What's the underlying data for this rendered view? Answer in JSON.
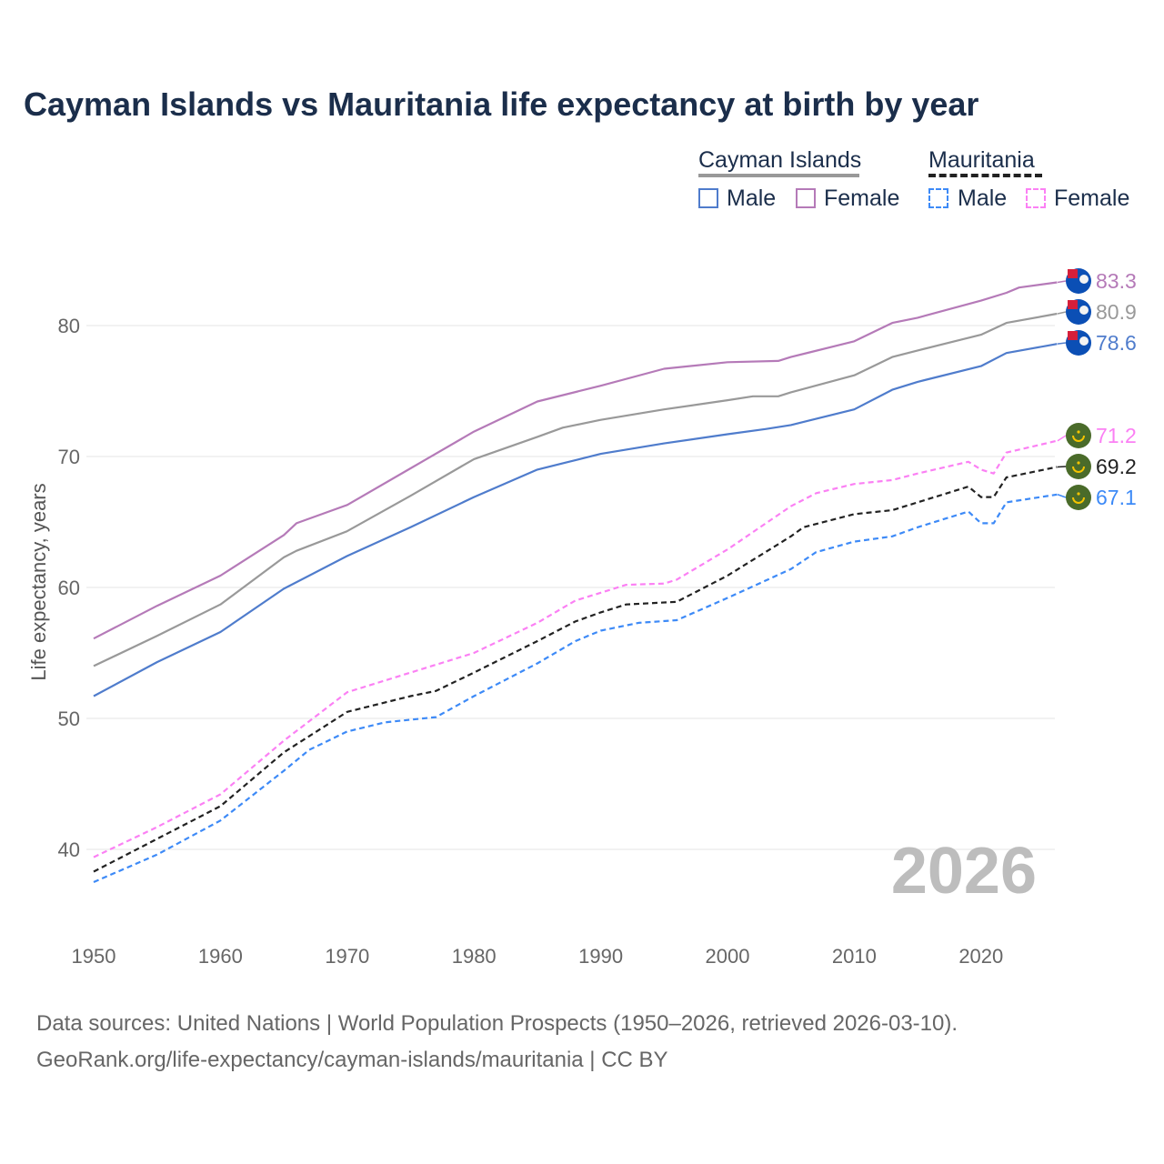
{
  "chart_data": {
    "type": "line",
    "title": "Cayman Islands vs Mauritania life expectancy at birth by year",
    "xlabel": "",
    "ylabel": "Life expectancy, years",
    "xlim": [
      1950,
      2026
    ],
    "ylim": [
      35,
      86
    ],
    "x_ticks": [
      "1950",
      "1960",
      "1970",
      "1980",
      "1990",
      "2000",
      "2010",
      "2020"
    ],
    "y_ticks": [
      "40",
      "50",
      "60",
      "70",
      "80"
    ],
    "grid": true,
    "year_watermark": "2026",
    "legend": {
      "placement": "top-right",
      "groups": [
        {
          "country": "Cayman Islands",
          "style": "solid",
          "color": "#999999",
          "items": [
            {
              "label": "Male",
              "color": "#4f7ccc"
            },
            {
              "label": "Female",
              "color": "#b57ab8"
            }
          ]
        },
        {
          "country": "Mauritania",
          "style": "dashed",
          "color": "#222222",
          "items": [
            {
              "label": "Male",
              "color": "#3d8af7"
            },
            {
              "label": "Female",
              "color": "#fb80f4"
            }
          ]
        }
      ]
    },
    "series": [
      {
        "name": "Cayman Islands Female",
        "color": "#b57ab8",
        "dashed": false,
        "end_label": "83.3",
        "flag": "cayman",
        "x": [
          1950,
          1955,
          1960,
          1965,
          1966,
          1970,
          1975,
          1980,
          1985,
          1990,
          1995,
          2000,
          2004,
          2005,
          2010,
          2013,
          2015,
          2020,
          2022,
          2023,
          2026
        ],
        "y": [
          56.1,
          58.6,
          60.9,
          64.0,
          64.9,
          66.3,
          69.1,
          71.9,
          74.2,
          75.4,
          76.7,
          77.2,
          77.3,
          77.6,
          78.8,
          80.2,
          80.6,
          81.9,
          82.5,
          82.9,
          83.3
        ]
      },
      {
        "name": "Cayman Islands Total",
        "color": "#999999",
        "dashed": false,
        "end_label": "80.9",
        "flag": "cayman",
        "x": [
          1950,
          1955,
          1960,
          1965,
          1966,
          1970,
          1975,
          1980,
          1985,
          1987,
          1990,
          1995,
          2000,
          2002,
          2004,
          2005,
          2010,
          2013,
          2015,
          2020,
          2022,
          2026
        ],
        "y": [
          54.0,
          56.3,
          58.7,
          62.3,
          62.8,
          64.3,
          67.0,
          69.8,
          71.5,
          72.2,
          72.8,
          73.6,
          74.3,
          74.6,
          74.6,
          74.9,
          76.2,
          77.6,
          78.1,
          79.3,
          80.2,
          80.9
        ]
      },
      {
        "name": "Cayman Islands Male",
        "color": "#4f7ccc",
        "dashed": false,
        "end_label": "78.6",
        "flag": "cayman",
        "x": [
          1950,
          1955,
          1960,
          1965,
          1970,
          1975,
          1980,
          1985,
          1990,
          1995,
          2000,
          2003,
          2005,
          2010,
          2013,
          2015,
          2020,
          2022,
          2026
        ],
        "y": [
          51.7,
          54.3,
          56.6,
          59.9,
          62.4,
          64.6,
          66.9,
          69.0,
          70.2,
          71.0,
          71.7,
          72.1,
          72.4,
          73.6,
          75.1,
          75.7,
          76.9,
          77.9,
          78.6
        ]
      },
      {
        "name": "Mauritania Female",
        "color": "#fb80f4",
        "dashed": true,
        "end_label": "71.2",
        "flag": "mauritania",
        "x": [
          1950,
          1955,
          1960,
          1965,
          1970,
          1975,
          1980,
          1985,
          1988,
          1990,
          1992,
          1995,
          1996,
          2000,
          2005,
          2007,
          2010,
          2013,
          2015,
          2019,
          2020,
          2021,
          2022,
          2026
        ],
        "y": [
          39.4,
          41.7,
          44.2,
          48.3,
          52.0,
          53.5,
          55.0,
          57.3,
          59.0,
          59.6,
          60.2,
          60.3,
          60.6,
          62.9,
          66.2,
          67.2,
          67.9,
          68.2,
          68.7,
          69.6,
          69.0,
          68.7,
          70.3,
          71.2
        ]
      },
      {
        "name": "Mauritania Total",
        "color": "#222222",
        "dashed": true,
        "end_label": "69.2",
        "flag": "mauritania",
        "x": [
          1950,
          1955,
          1960,
          1965,
          1970,
          1975,
          1977,
          1980,
          1985,
          1988,
          1990,
          1992,
          1996,
          2000,
          2005,
          2006,
          2010,
          2013,
          2015,
          2019,
          2020,
          2021,
          2022,
          2026
        ],
        "y": [
          38.3,
          40.8,
          43.3,
          47.4,
          50.5,
          51.7,
          52.1,
          53.5,
          55.9,
          57.4,
          58.1,
          58.7,
          58.9,
          60.9,
          63.9,
          64.6,
          65.6,
          65.9,
          66.5,
          67.7,
          66.9,
          66.9,
          68.4,
          69.2
        ]
      },
      {
        "name": "Mauritania Male",
        "color": "#3d8af7",
        "dashed": true,
        "end_label": "67.1",
        "flag": "mauritania",
        "x": [
          1950,
          1955,
          1960,
          1965,
          1967,
          1970,
          1973,
          1975,
          1977,
          1980,
          1985,
          1988,
          1990,
          1993,
          1996,
          2000,
          2005,
          2007,
          2010,
          2013,
          2015,
          2019,
          2020,
          2021,
          2022,
          2026
        ],
        "y": [
          37.5,
          39.6,
          42.2,
          46.0,
          47.6,
          49.0,
          49.7,
          49.9,
          50.1,
          51.7,
          54.2,
          55.9,
          56.7,
          57.3,
          57.5,
          59.2,
          61.4,
          62.7,
          63.5,
          63.9,
          64.6,
          65.8,
          64.9,
          64.9,
          66.5,
          67.1
        ]
      }
    ]
  },
  "footer": {
    "line1": "Data sources: United Nations | World Population Prospects (1950–2026, retrieved 2026-03-10).",
    "line2": "GeoRank.org/life-expectancy/cayman-islands/mauritania | CC BY"
  }
}
